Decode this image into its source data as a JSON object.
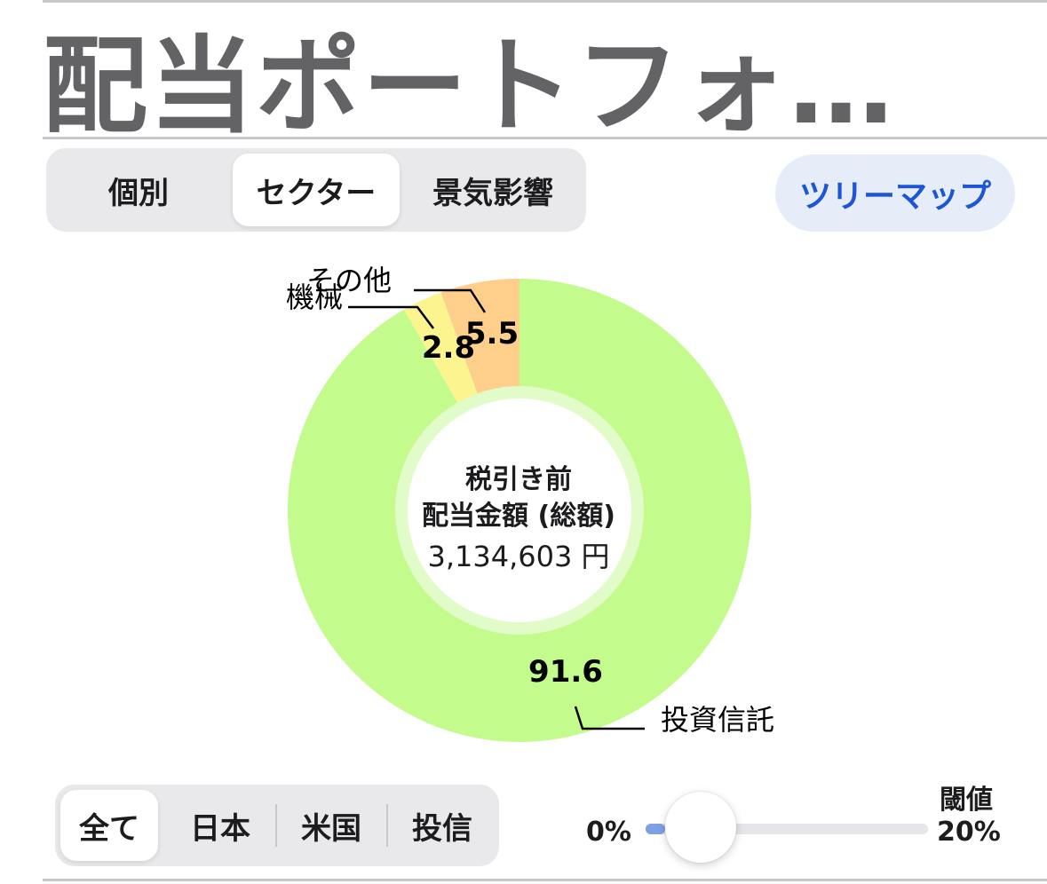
{
  "header": {
    "title": "配当ポートフォ…"
  },
  "view_tabs": [
    {
      "label": "個別",
      "selected": false
    },
    {
      "label": "セクター",
      "selected": true
    },
    {
      "label": "景気影響",
      "selected": false
    }
  ],
  "treemap_button": {
    "label": "ツリーマップ"
  },
  "center": {
    "line1": "税引き前",
    "line2": "配当金額 (総額)",
    "amount": "3,134,603 円"
  },
  "chart_data": {
    "type": "pie",
    "categories": [
      "投資信託",
      "機械",
      "その他"
    ],
    "values": [
      91.6,
      2.8,
      5.5
    ],
    "value_labels": [
      "91.6",
      "2.8",
      "5.5"
    ],
    "colors": [
      "#c3fc8d",
      "#fbf48f",
      "#fdcf8b"
    ],
    "donut": true
  },
  "region_tabs": [
    {
      "label": "全て",
      "selected": true
    },
    {
      "label": "日本",
      "selected": false
    },
    {
      "label": "米国",
      "selected": false
    },
    {
      "label": "投信",
      "selected": false
    }
  ],
  "threshold": {
    "label": "閾値",
    "min_label": "0%",
    "max_label": "20%",
    "value_fraction": 0.0
  }
}
